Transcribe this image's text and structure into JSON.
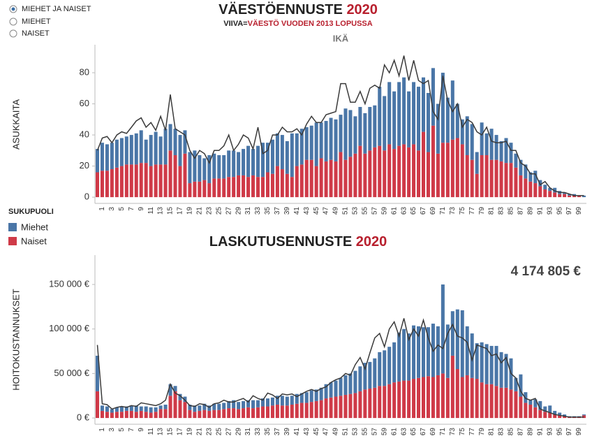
{
  "controls": {
    "options": [
      "MIEHET JA NAISET",
      "MIEHET",
      "NAISET"
    ],
    "selected": 0
  },
  "chart_data": [
    {
      "type": "bar",
      "title": "VÄESTÖENNUSTE",
      "title_year": "2020",
      "subtitle": "VIIVA=",
      "subtitle_highlight": "VÄESTÖ VUODEN 2013 LOPUSSA",
      "x_label": "IKÄ",
      "y_label": "ASUKKAITA",
      "legend_title": "SUKUPUOLI",
      "stacked": true,
      "categories": [
        null,
        "1",
        null,
        "3",
        null,
        "5",
        null,
        "7",
        null,
        "9",
        null,
        "11",
        null,
        "13",
        null,
        "15",
        null,
        "17",
        null,
        "19",
        null,
        "21",
        null,
        "23",
        null,
        "25",
        null,
        "27",
        null,
        "29",
        null,
        "31",
        null,
        "33",
        null,
        "35",
        null,
        "37",
        null,
        "39",
        null,
        "41",
        null,
        "43",
        null,
        "45",
        null,
        "47",
        null,
        "49",
        null,
        "51",
        null,
        "53",
        null,
        "55",
        null,
        "57",
        null,
        "59",
        null,
        "61",
        null,
        "63",
        null,
        "65",
        null,
        "67",
        null,
        "69",
        null,
        "71",
        null,
        "73",
        null,
        "75",
        null,
        "77",
        null,
        "79",
        null,
        "81",
        null,
        "83",
        null,
        "85",
        null,
        "87",
        null,
        "89",
        null,
        "91",
        null,
        "93",
        null,
        "95",
        null,
        "97",
        null,
        "99",
        null
      ],
      "series": [
        {
          "name": "Miehet",
          "color": "#4a76a7",
          "values": [
            15,
            18,
            17,
            17,
            18,
            18,
            18,
            19,
            20,
            21,
            15,
            20,
            21,
            18,
            23,
            17,
            17,
            20,
            15,
            20,
            20,
            17,
            14,
            18,
            16,
            15,
            15,
            17,
            17,
            15,
            17,
            20,
            17,
            20,
            22,
            19,
            22,
            21,
            22,
            21,
            28,
            21,
            23,
            21,
            22,
            28,
            23,
            26,
            27,
            27,
            24,
            33,
            30,
            24,
            25,
            26,
            28,
            27,
            38,
            35,
            40,
            37,
            41,
            43,
            36,
            40,
            41,
            35,
            38,
            37,
            32,
            45,
            29,
            38,
            22,
            16,
            25,
            23,
            14,
            21,
            14,
            20,
            16,
            13,
            16,
            13,
            9,
            10,
            9,
            6,
            8,
            4,
            3,
            2,
            3,
            2,
            1,
            1,
            1,
            0,
            1
          ]
        },
        {
          "name": "Naiset",
          "color": "#cf3a48",
          "values": [
            16,
            17,
            17,
            18,
            19,
            20,
            21,
            21,
            21,
            22,
            22,
            20,
            21,
            21,
            21,
            30,
            27,
            20,
            28,
            9,
            10,
            10,
            11,
            9,
            12,
            12,
            12,
            13,
            13,
            14,
            14,
            13,
            14,
            13,
            13,
            16,
            15,
            20,
            18,
            15,
            13,
            20,
            21,
            24,
            24,
            20,
            25,
            23,
            24,
            23,
            29,
            24,
            26,
            28,
            33,
            28,
            30,
            32,
            33,
            30,
            34,
            31,
            33,
            34,
            32,
            34,
            30,
            42,
            29,
            46,
            28,
            35,
            35,
            37,
            38,
            34,
            27,
            24,
            15,
            27,
            27,
            24,
            24,
            23,
            22,
            22,
            19,
            14,
            12,
            10,
            9,
            7,
            5,
            4,
            3,
            2,
            2,
            1,
            1,
            1,
            0
          ]
        }
      ],
      "reference_line": {
        "color": "#3a3a3a",
        "values": [
          30,
          38,
          39,
          35,
          40,
          42,
          41,
          45,
          49,
          51,
          45,
          48,
          43,
          52,
          43,
          66,
          44,
          42,
          40,
          30,
          25,
          30,
          28,
          22,
          30,
          30,
          33,
          40,
          30,
          34,
          40,
          38,
          31,
          45,
          28,
          30,
          40,
          40,
          45,
          42,
          42,
          44,
          40,
          47,
          52,
          48,
          48,
          53,
          54,
          55,
          73,
          73,
          61,
          61,
          68,
          60,
          70,
          72,
          70,
          85,
          80,
          88,
          78,
          91,
          75,
          88,
          75,
          73,
          75,
          55,
          50,
          78,
          62,
          55,
          60,
          45,
          50,
          48,
          42,
          40,
          45,
          36,
          35,
          35,
          36,
          30,
          30,
          22,
          20,
          15,
          15,
          8,
          10,
          6,
          4,
          3,
          3,
          2,
          1,
          1,
          1
        ]
      },
      "ylim": [
        -4,
        98
      ],
      "yticks": [
        0,
        20,
        40,
        60,
        80
      ],
      "grid": false
    },
    {
      "type": "bar",
      "title": "LASKUTUSENNUSTE",
      "title_year": "2020",
      "y_label": "HOITOKUSTANNUKSET",
      "stacked": true,
      "total": {
        "value": 4174805,
        "label": "4 174 805 €"
      },
      "categories": [
        null,
        "1",
        null,
        "3",
        null,
        "5",
        null,
        "7",
        null,
        "9",
        null,
        "11",
        null,
        "13",
        null,
        "15",
        null,
        "17",
        null,
        "19",
        null,
        "21",
        null,
        "23",
        null,
        "25",
        null,
        "27",
        null,
        "29",
        null,
        "31",
        null,
        "33",
        null,
        "35",
        null,
        "37",
        null,
        "39",
        null,
        "41",
        null,
        "43",
        null,
        "45",
        null,
        "47",
        null,
        "49",
        null,
        "51",
        null,
        "53",
        null,
        "55",
        null,
        "57",
        null,
        "59",
        null,
        "61",
        null,
        "63",
        null,
        "65",
        null,
        "67",
        null,
        "69",
        null,
        "71",
        null,
        "73",
        null,
        "75",
        null,
        "77",
        null,
        "79",
        null,
        "81",
        null,
        "83",
        null,
        "85",
        null,
        "87",
        null,
        "89",
        null,
        "91",
        null,
        "93",
        null,
        "95",
        null,
        "97",
        null,
        "99",
        null
      ],
      "series": [
        {
          "name": "Miehet",
          "color": "#4a76a7",
          "values": [
            40000,
            6000,
            6000,
            4000,
            5000,
            6000,
            5000,
            6000,
            7000,
            5000,
            6000,
            6000,
            5000,
            4000,
            5000,
            13000,
            6000,
            7000,
            6000,
            6000,
            7000,
            6000,
            7000,
            6000,
            7000,
            7000,
            7000,
            8000,
            9000,
            8000,
            8000,
            8000,
            9000,
            8000,
            9000,
            9000,
            9000,
            10000,
            11000,
            10000,
            10000,
            11000,
            11000,
            12000,
            13000,
            13000,
            14000,
            16000,
            17000,
            18000,
            20000,
            22000,
            23000,
            25000,
            28000,
            30000,
            30000,
            33000,
            38000,
            40000,
            42000,
            45000,
            55000,
            58000,
            53000,
            60000,
            58000,
            56000,
            55000,
            60000,
            55000,
            100000,
            60000,
            50000,
            67000,
            75000,
            55000,
            50000,
            40000,
            45000,
            45000,
            43000,
            45000,
            40000,
            38000,
            35000,
            15000,
            25000,
            12000,
            5000,
            9000,
            10000,
            6000,
            8000,
            4000,
            3000,
            2000,
            1000,
            1000,
            1000,
            1000
          ]
        },
        {
          "name": "Naiset",
          "color": "#cf3a48",
          "values": [
            30000,
            8000,
            7000,
            6000,
            7000,
            7000,
            8000,
            8000,
            7000,
            8000,
            7000,
            6000,
            7000,
            10000,
            10000,
            25000,
            30000,
            20000,
            18000,
            9000,
            7000,
            8000,
            9000,
            8000,
            9000,
            9000,
            10000,
            11000,
            11000,
            10000,
            11000,
            12000,
            11000,
            12000,
            13000,
            13000,
            14000,
            15000,
            14000,
            14000,
            15000,
            16000,
            17000,
            17000,
            18000,
            19000,
            20000,
            22000,
            23000,
            24000,
            25000,
            26000,
            27000,
            28000,
            30000,
            32000,
            33000,
            34000,
            36000,
            36000,
            38000,
            40000,
            41000,
            42000,
            42000,
            44000,
            45000,
            46000,
            47000,
            46000,
            48000,
            50000,
            45000,
            70000,
            55000,
            46000,
            48000,
            45000,
            44000,
            40000,
            38000,
            38000,
            36000,
            34000,
            34000,
            32000,
            30000,
            24000,
            17000,
            15000,
            12000,
            9000,
            7000,
            6000,
            4000,
            3000,
            2000,
            1000,
            1000,
            1000,
            3000
          ]
        }
      ],
      "reference_line": {
        "color": "#3a3a3a",
        "values": [
          82000,
          16000,
          15000,
          10000,
          12000,
          13000,
          12000,
          14000,
          13000,
          17000,
          16000,
          15000,
          14000,
          16000,
          20000,
          38000,
          28000,
          25000,
          20000,
          14000,
          13000,
          16000,
          15000,
          12000,
          16000,
          17000,
          20000,
          18000,
          18000,
          20000,
          22000,
          18000,
          25000,
          22000,
          20000,
          28000,
          26000,
          22000,
          27000,
          26000,
          27000,
          24000,
          27000,
          30000,
          32000,
          30000,
          33000,
          35000,
          40000,
          43000,
          45000,
          50000,
          48000,
          60000,
          68000,
          55000,
          73000,
          90000,
          95000,
          80000,
          100000,
          108000,
          92000,
          112000,
          88000,
          100000,
          92000,
          110000,
          90000,
          75000,
          82000,
          78000,
          95000,
          105000,
          92000,
          90000,
          85000,
          65000,
          82000,
          80000,
          78000,
          70000,
          72000,
          62000,
          68000,
          50000,
          45000,
          30000,
          22000,
          20000,
          22000,
          10000,
          8000,
          6000,
          4000,
          3000,
          2000,
          1000,
          1000,
          1000,
          1000
        ]
      },
      "ylim": [
        -7000,
        183000
      ],
      "yticks": [
        {
          "value": 0,
          "label": "0 €"
        },
        {
          "value": 50000,
          "label": "50 000 €"
        },
        {
          "value": 100000,
          "label": "100 000 €"
        },
        {
          "value": 150000,
          "label": "150 000 €"
        }
      ],
      "grid": false
    }
  ]
}
